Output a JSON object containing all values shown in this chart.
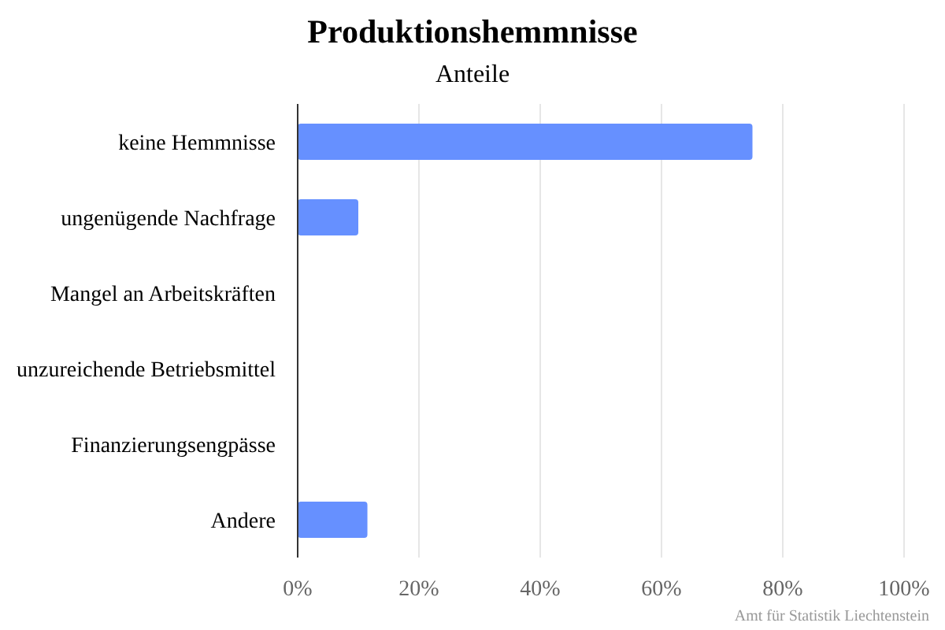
{
  "chart_data": {
    "type": "bar",
    "orientation": "horizontal",
    "title": "Produktionshemmnisse",
    "subtitle": "Anteile",
    "categories": [
      "keine Hemmnisse",
      "ungenügende Nachfrage",
      "Mangel an Arbeitskräften",
      "unzureichende Betriebsmittel",
      "Finanzierungsengpässe",
      "Andere"
    ],
    "values": [
      75,
      10,
      0,
      0,
      0,
      11.5
    ],
    "color": "#6690ff",
    "xlim": [
      0,
      100
    ],
    "xticks": [
      {
        "value": 0,
        "label": "0%"
      },
      {
        "value": 20,
        "label": "20%"
      },
      {
        "value": 40,
        "label": "40%"
      },
      {
        "value": 60,
        "label": "60%"
      },
      {
        "value": 80,
        "label": "80%"
      },
      {
        "value": 100,
        "label": "100%"
      }
    ],
    "grid": "x",
    "annotations": [
      "Amt für Statistik Liechtenstein"
    ]
  }
}
